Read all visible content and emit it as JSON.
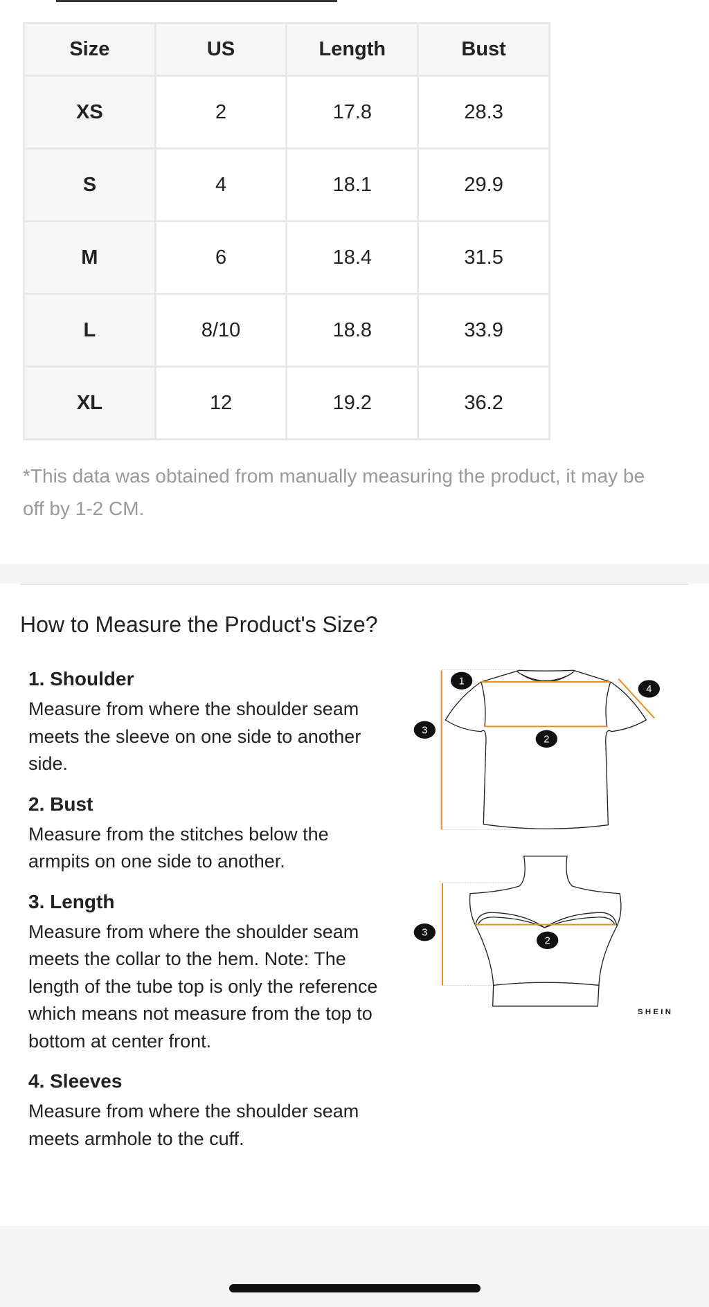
{
  "table": {
    "headers": [
      "Size",
      "US",
      "Length",
      "Bust"
    ],
    "rows": [
      [
        "XS",
        "2",
        "17.8",
        "28.3"
      ],
      [
        "S",
        "4",
        "18.1",
        "29.9"
      ],
      [
        "M",
        "6",
        "18.4",
        "31.5"
      ],
      [
        "L",
        "8/10",
        "18.8",
        "33.9"
      ],
      [
        "XL",
        "12",
        "19.2",
        "36.2"
      ]
    ]
  },
  "note": "*This data was obtained from manually measuring the product, it may be off by 1-2 CM.",
  "measure": {
    "title": "How to Measure the Product's Size?",
    "steps": [
      {
        "title": "1. Shoulder",
        "text": "Measure from where the shoulder seam meets the sleeve on one side to another side."
      },
      {
        "title": "2. Bust",
        "text": "Measure from the stitches below the armpits on one side to another."
      },
      {
        "title": "3. Length",
        "text": "Measure from where the shoulder seam meets the collar to the hem. Note: The length of the tube top is only the reference which means not measure from the top to bottom at center front."
      },
      {
        "title": "4. Sleeves",
        "text": "Measure from where the shoulder seam meets armhole to the cuff."
      }
    ]
  },
  "diagram": {
    "markers": [
      "1",
      "2",
      "3",
      "4",
      "3",
      "2"
    ],
    "brand": "SHEIN",
    "accent": "#f08a24"
  }
}
